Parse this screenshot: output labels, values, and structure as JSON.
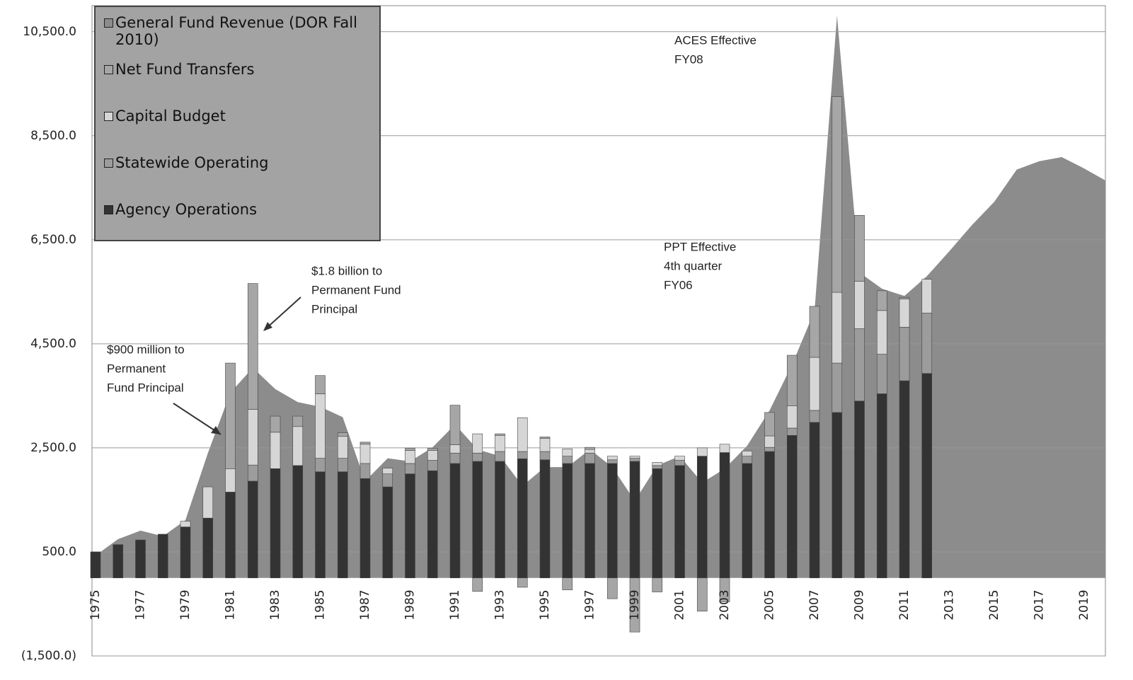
{
  "chart_data": {
    "type": "bar",
    "categories": [
      "1975",
      null,
      "1977",
      null,
      "1979",
      null,
      "1981",
      null,
      "1983",
      null,
      "1985",
      null,
      "1987",
      null,
      "1989",
      null,
      "1991",
      null,
      "1993",
      null,
      "1995",
      null,
      "1997",
      null,
      "1999",
      null,
      "2001",
      null,
      "2003",
      null,
      "2005",
      null,
      "2007",
      null,
      "2009",
      null,
      "2011",
      null,
      "2013",
      null,
      "2015",
      null,
      "2017",
      null,
      "2019",
      null
    ],
    "series": [
      {
        "name": "General Fund Revenue (DOR Fall 2010)",
        "type": "area",
        "color": "#8c8c8c",
        "values": [
          430,
          745,
          910,
          800,
          1110,
          2400,
          3560,
          4040,
          3630,
          3380,
          3290,
          3090,
          1860,
          2300,
          2240,
          2510,
          2950,
          2470,
          2340,
          1770,
          2130,
          2130,
          2470,
          2130,
          1480,
          2160,
          2340,
          1830,
          2100,
          2540,
          3220,
          4100,
          5130,
          10810,
          5870,
          5560,
          5420,
          5800,
          6280,
          6780,
          7230,
          7850,
          8010,
          8090,
          7870,
          7640
        ]
      },
      {
        "name": "Net Fund Transfers",
        "color": "#a6a6a6",
        "values": [
          0,
          0,
          0,
          0,
          0,
          0,
          2030,
          2420,
          310,
          200,
          350,
          70,
          40,
          0,
          40,
          40,
          760,
          -260,
          30,
          -180,
          30,
          -230,
          40,
          -400,
          -1040,
          -270,
          0,
          -640,
          -460,
          0,
          450,
          970,
          980,
          3760,
          1270,
          380,
          30,
          0,
          null,
          null,
          null,
          null,
          null,
          null,
          null,
          null
        ]
      },
      {
        "name": "Capital Budget",
        "color": "#d6d6d6",
        "values": [
          0,
          0,
          0,
          0,
          110,
          600,
          450,
          1070,
          700,
          750,
          1240,
          420,
          370,
          110,
          250,
          190,
          160,
          370,
          310,
          650,
          250,
          140,
          70,
          70,
          40,
          60,
          80,
          160,
          160,
          100,
          220,
          430,
          1020,
          1360,
          910,
          840,
          540,
          650,
          null,
          null,
          null,
          null,
          null,
          null,
          null,
          null
        ]
      },
      {
        "name": "Statewide Operating",
        "color": "#9c9c9c",
        "values": [
          0,
          0,
          0,
          0,
          0,
          0,
          0,
          310,
          0,
          0,
          260,
          260,
          290,
          250,
          200,
          200,
          200,
          160,
          190,
          140,
          160,
          140,
          200,
          70,
          60,
          60,
          100,
          0,
          0,
          140,
          80,
          140,
          230,
          950,
          1390,
          760,
          1030,
          1160,
          null,
          null,
          null,
          null,
          null,
          null,
          null,
          null
        ]
      },
      {
        "name": "Agency Operations",
        "color": "#333333",
        "values": [
          500,
          640,
          730,
          840,
          980,
          1150,
          1650,
          1860,
          2100,
          2160,
          2040,
          2040,
          1910,
          1750,
          2000,
          2060,
          2200,
          2240,
          2240,
          2290,
          2270,
          2200,
          2200,
          2200,
          2240,
          2100,
          2160,
          2340,
          2410,
          2200,
          2430,
          2740,
          2990,
          3180,
          3400,
          3540,
          3790,
          3930,
          null,
          null,
          null,
          null,
          null,
          null,
          null,
          null
        ]
      }
    ],
    "ylim": [
      -1500,
      11000
    ],
    "yticks": [
      {
        "value": -1500,
        "label": "(1,500.0)"
      },
      {
        "value": 500,
        "label": "500.0"
      },
      {
        "value": 2500,
        "label": "2,500.0"
      },
      {
        "value": 4500,
        "label": "4,500.0"
      },
      {
        "value": 6500,
        "label": "6,500.0"
      },
      {
        "value": 8500,
        "label": "8,500.0"
      },
      {
        "value": 10500,
        "label": "10,500.0"
      }
    ],
    "grid": true,
    "legend": "upper left",
    "annotations": [
      [
        "$900 million to",
        "Permanent",
        "Fund Principal"
      ],
      [
        "$1.8 billion to",
        "Permanent Fund",
        "Principal"
      ],
      [
        "ACES Effective",
        "FY08"
      ],
      [
        "PPT Effective",
        "4th quarter",
        "FY06"
      ]
    ]
  }
}
